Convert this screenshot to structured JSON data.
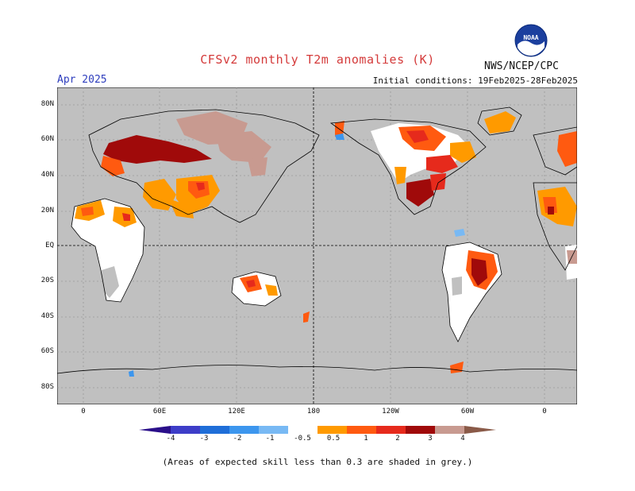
{
  "header": {
    "title": "CFSv2 monthly T2m anomalies (K)",
    "agency": "NWS/NCEP/CPC",
    "logo_text": "NOAA",
    "month": "Apr 2025",
    "initial_conditions": "Initial conditions: 19Feb2025-28Feb2025"
  },
  "map": {
    "lat_labels": [
      "80N",
      "60N",
      "40N",
      "20N",
      "EQ",
      "20S",
      "40S",
      "60S",
      "80S"
    ],
    "lon_labels": [
      "0",
      "60E",
      "120E",
      "180",
      "120W",
      "60W",
      "0"
    ],
    "background_color": "#c0c0c0"
  },
  "colorbar": {
    "labels": [
      "-4",
      "-3",
      "-2",
      "-1",
      "-0.5",
      "0.5",
      "1",
      "2",
      "3",
      "4"
    ],
    "colors": [
      "#2a0f8a",
      "#3d3dc8",
      "#1f6ed8",
      "#3c96ee",
      "#78b9f4",
      "#ffffff",
      "#ff9a00",
      "#ff5a10",
      "#e62a1c",
      "#a00a0a",
      "#c89a90",
      "#8a5a48"
    ]
  },
  "footnote": "(Areas of expected skill less than 0.3 are shaded in grey.)"
}
